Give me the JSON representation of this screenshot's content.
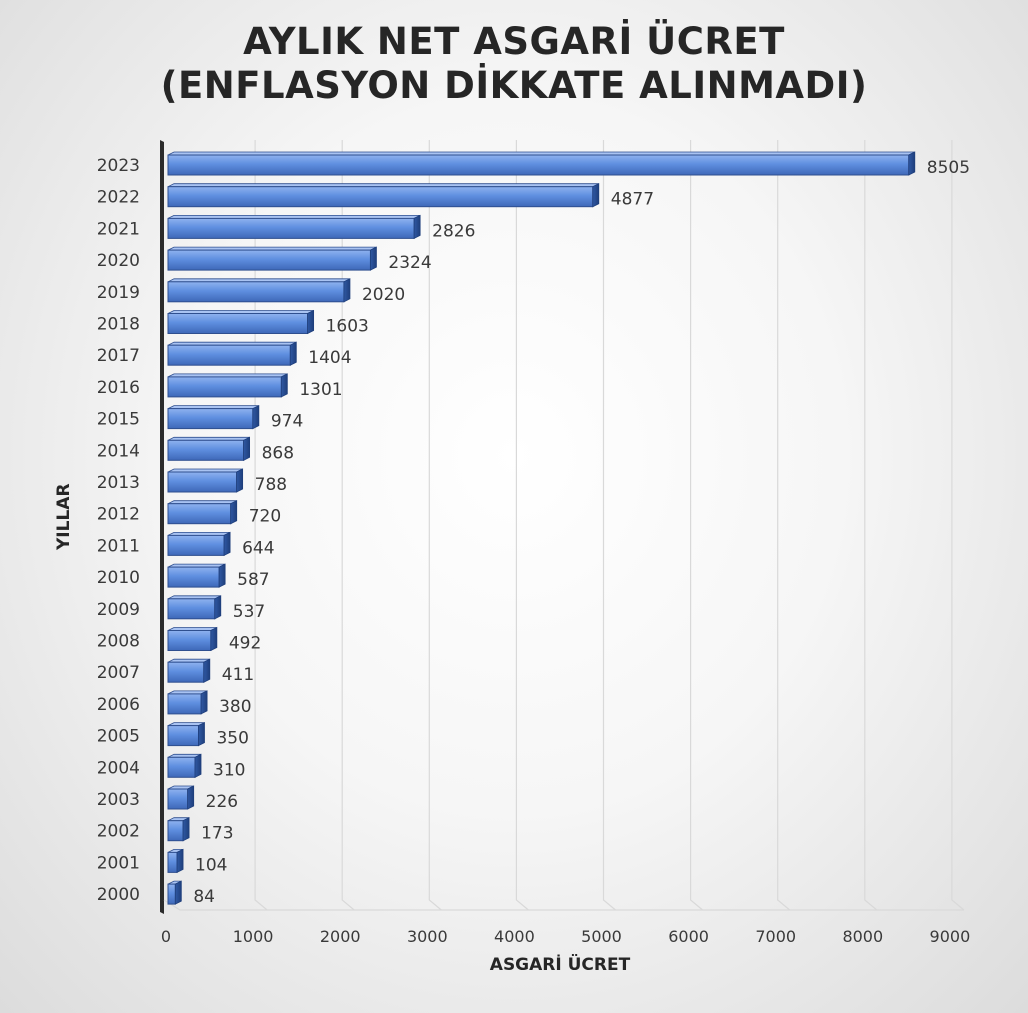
{
  "chart_data": {
    "type": "bar",
    "orientation": "horizontal",
    "title_line1": "AYLIK NET ASGARİ ÜCRET",
    "title_line2": "(ENFLASYON DİKKATE ALINMADI)",
    "xlabel": "ASGARİ ÜCRET",
    "ylabel": "YILLAR",
    "xlim": [
      0,
      9000
    ],
    "xticks": [
      "0",
      "1000",
      "2000",
      "3000",
      "4000",
      "5000",
      "6000",
      "7000",
      "8000",
      "9000"
    ],
    "categories": [
      "2000",
      "2001",
      "2002",
      "2003",
      "2004",
      "2005",
      "2006",
      "2007",
      "2008",
      "2009",
      "2010",
      "2011",
      "2012",
      "2013",
      "2014",
      "2015",
      "2016",
      "2017",
      "2018",
      "2019",
      "2020",
      "2021",
      "2022",
      "2023"
    ],
    "values": [
      84,
      104,
      173,
      226,
      310,
      350,
      380,
      411,
      492,
      537,
      587,
      644,
      720,
      788,
      868,
      974,
      1301,
      1404,
      1603,
      2020,
      2324,
      2826,
      4877,
      8505
    ],
    "data_labels": true,
    "grid": true,
    "legend": "none",
    "bar_color": "#4f7fd6",
    "bar_highlight_color": "#8fb2ef",
    "bar_border_color": "#2f4f8f"
  }
}
